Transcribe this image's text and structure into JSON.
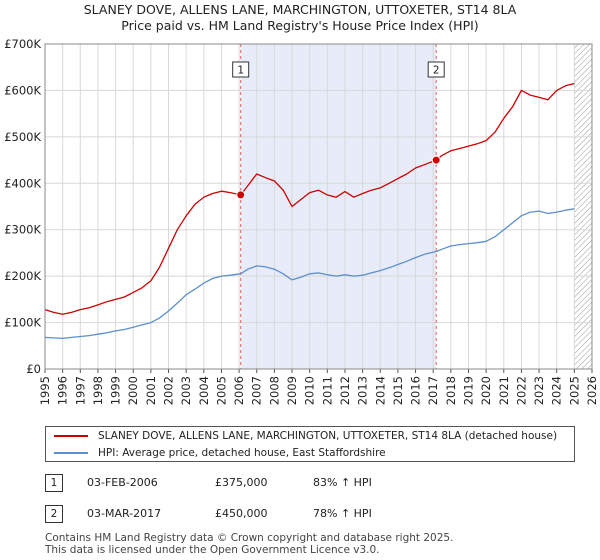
{
  "title_line1": "SLANEY DOVE, ALLENS LANE, MARCHINGTON, UTTOXETER, ST14 8LA",
  "title_line2": "Price paid vs. HM Land Registry's House Price Index (HPI)",
  "chart_data": {
    "type": "line",
    "title": "SLANEY DOVE, ALLENS LANE, MARCHINGTON, UTTOXETER, ST14 8LA — Price paid vs. HM Land Registry's House Price Index (HPI)",
    "xlabel": "",
    "ylabel": "",
    "xlim": [
      1995,
      2026
    ],
    "ylim": [
      0,
      700000
    ],
    "grid": true,
    "x_ticks": [
      "1995",
      "1996",
      "1997",
      "1998",
      "1999",
      "2000",
      "2001",
      "2002",
      "2003",
      "2004",
      "2005",
      "2006",
      "2007",
      "2008",
      "2009",
      "2010",
      "2011",
      "2012",
      "2013",
      "2014",
      "2015",
      "2016",
      "2017",
      "2018",
      "2019",
      "2020",
      "2021",
      "2022",
      "2023",
      "2024",
      "2025",
      "2026"
    ],
    "y_ticks": [
      {
        "value": 0,
        "label": "£0"
      },
      {
        "value": 100000,
        "label": "£100K"
      },
      {
        "value": 200000,
        "label": "£200K"
      },
      {
        "value": 300000,
        "label": "£300K"
      },
      {
        "value": 400000,
        "label": "£400K"
      },
      {
        "value": 500000,
        "label": "£500K"
      },
      {
        "value": 600000,
        "label": "£600K"
      },
      {
        "value": 700000,
        "label": "£700K"
      }
    ],
    "highlight_band": {
      "from": 2006.09,
      "to": 2017.17
    },
    "hatched_from": 2025.0,
    "series": [
      {
        "name": "SLANEY DOVE, ALLENS LANE, MARCHINGTON, UTTOXETER, ST14 8LA (detached house)",
        "color": "#cc0000",
        "x": [
          1995.0,
          1995.5,
          1996.0,
          1996.5,
          1997.0,
          1997.5,
          1998.0,
          1998.5,
          1999.0,
          1999.5,
          2000.0,
          2000.5,
          2001.0,
          2001.5,
          2002.0,
          2002.5,
          2003.0,
          2003.5,
          2004.0,
          2004.5,
          2005.0,
          2005.5,
          2006.09,
          2006.5,
          2007.0,
          2007.5,
          2008.0,
          2008.5,
          2009.0,
          2009.5,
          2010.0,
          2010.5,
          2011.0,
          2011.5,
          2012.0,
          2012.5,
          2013.0,
          2013.5,
          2014.0,
          2014.5,
          2015.0,
          2015.5,
          2016.0,
          2016.5,
          2017.17,
          2017.5,
          2018.0,
          2018.5,
          2019.0,
          2019.5,
          2020.0,
          2020.5,
          2021.0,
          2021.5,
          2022.0,
          2022.5,
          2023.0,
          2023.5,
          2024.0,
          2024.5,
          2025.0
        ],
        "values": [
          128000,
          122000,
          118000,
          122000,
          128000,
          132000,
          138000,
          145000,
          150000,
          155000,
          165000,
          175000,
          190000,
          220000,
          260000,
          300000,
          330000,
          355000,
          370000,
          378000,
          383000,
          380000,
          375000,
          395000,
          420000,
          412000,
          405000,
          385000,
          350000,
          365000,
          380000,
          385000,
          375000,
          370000,
          382000,
          370000,
          378000,
          385000,
          390000,
          400000,
          410000,
          420000,
          433000,
          440000,
          450000,
          460000,
          470000,
          475000,
          480000,
          485000,
          492000,
          510000,
          540000,
          565000,
          600000,
          590000,
          585000,
          580000,
          600000,
          610000,
          615000
        ]
      },
      {
        "name": "HPI: Average price, detached house, East Staffordshire",
        "color": "#5b8fce",
        "x": [
          1995.0,
          1995.5,
          1996.0,
          1996.5,
          1997.0,
          1997.5,
          1998.0,
          1998.5,
          1999.0,
          1999.5,
          2000.0,
          2000.5,
          2001.0,
          2001.5,
          2002.0,
          2002.5,
          2003.0,
          2003.5,
          2004.0,
          2004.5,
          2005.0,
          2005.5,
          2006.09,
          2006.5,
          2007.0,
          2007.5,
          2008.0,
          2008.5,
          2009.0,
          2009.5,
          2010.0,
          2010.5,
          2011.0,
          2011.5,
          2012.0,
          2012.5,
          2013.0,
          2013.5,
          2014.0,
          2014.5,
          2015.0,
          2015.5,
          2016.0,
          2016.5,
          2017.17,
          2017.5,
          2018.0,
          2018.5,
          2019.0,
          2019.5,
          2020.0,
          2020.5,
          2021.0,
          2021.5,
          2022.0,
          2022.5,
          2023.0,
          2023.5,
          2024.0,
          2024.5,
          2025.0
        ],
        "values": [
          68000,
          67000,
          66000,
          68000,
          70000,
          72000,
          75000,
          78000,
          82000,
          85000,
          90000,
          95000,
          100000,
          110000,
          125000,
          142000,
          160000,
          172000,
          185000,
          195000,
          200000,
          202000,
          205000,
          215000,
          222000,
          220000,
          215000,
          205000,
          192000,
          198000,
          205000,
          207000,
          203000,
          200000,
          203000,
          200000,
          202000,
          207000,
          212000,
          218000,
          225000,
          232000,
          240000,
          247000,
          253000,
          258000,
          265000,
          268000,
          270000,
          272000,
          275000,
          285000,
          300000,
          315000,
          330000,
          338000,
          340000,
          335000,
          338000,
          342000,
          345000
        ]
      }
    ],
    "sales": [
      {
        "label": "1",
        "x": 2006.09,
        "value": 375000
      },
      {
        "label": "2",
        "x": 2017.17,
        "value": 450000
      }
    ],
    "marker_labels": [
      "1",
      "2"
    ]
  },
  "legend": {
    "property_label": "SLANEY DOVE, ALLENS LANE, MARCHINGTON, UTTOXETER, ST14 8LA (detached house)",
    "hpi_label": "HPI: Average price, detached house, East Staffordshire",
    "property_color": "#cc0000",
    "hpi_color": "#5b8fce"
  },
  "sales_table": [
    {
      "num": "1",
      "date": "03-FEB-2006",
      "price": "£375,000",
      "hpi": "83% ↑ HPI"
    },
    {
      "num": "2",
      "date": "03-MAR-2017",
      "price": "£450,000",
      "hpi": "78% ↑ HPI"
    }
  ],
  "footer": {
    "line1": "Contains HM Land Registry data © Crown copyright and database right 2025.",
    "line2": "This data is licensed under the Open Government Licence v3.0."
  }
}
